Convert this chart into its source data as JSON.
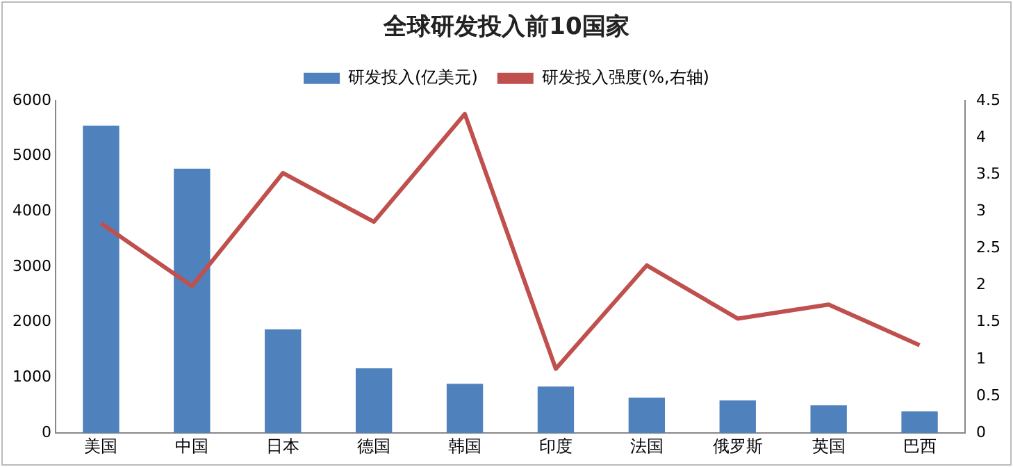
{
  "chart_data": {
    "type": "bar",
    "title": "全球研发投入前10国家",
    "categories": [
      "美国",
      "中国",
      "日本",
      "德国",
      "韩国",
      "印度",
      "法国",
      "俄罗斯",
      "英国",
      "巴西"
    ],
    "series": [
      {
        "name": "研发投入(亿美元)",
        "type": "bar",
        "color": "#4f81bd",
        "values": [
          5550,
          4770,
          1870,
          1170,
          890,
          840,
          640,
          590,
          500,
          390
        ]
      },
      {
        "name": "研发投入强度(%,右轴)",
        "type": "line",
        "axis": "y2",
        "color": "#c0504d",
        "values": [
          2.84,
          1.99,
          3.52,
          2.86,
          4.32,
          0.87,
          2.27,
          1.55,
          1.74,
          1.19
        ]
      }
    ],
    "ylim": [
      0,
      6000
    ],
    "yticks": [
      0,
      1000,
      2000,
      3000,
      4000,
      5000,
      6000
    ],
    "y2lim": [
      0,
      4.5
    ],
    "y2ticks": [
      0,
      0.5,
      1,
      1.5,
      2,
      2.5,
      3,
      3.5,
      4,
      4.5
    ],
    "grid": false,
    "legend": "top",
    "marker": "none",
    "line_style": "solid"
  }
}
